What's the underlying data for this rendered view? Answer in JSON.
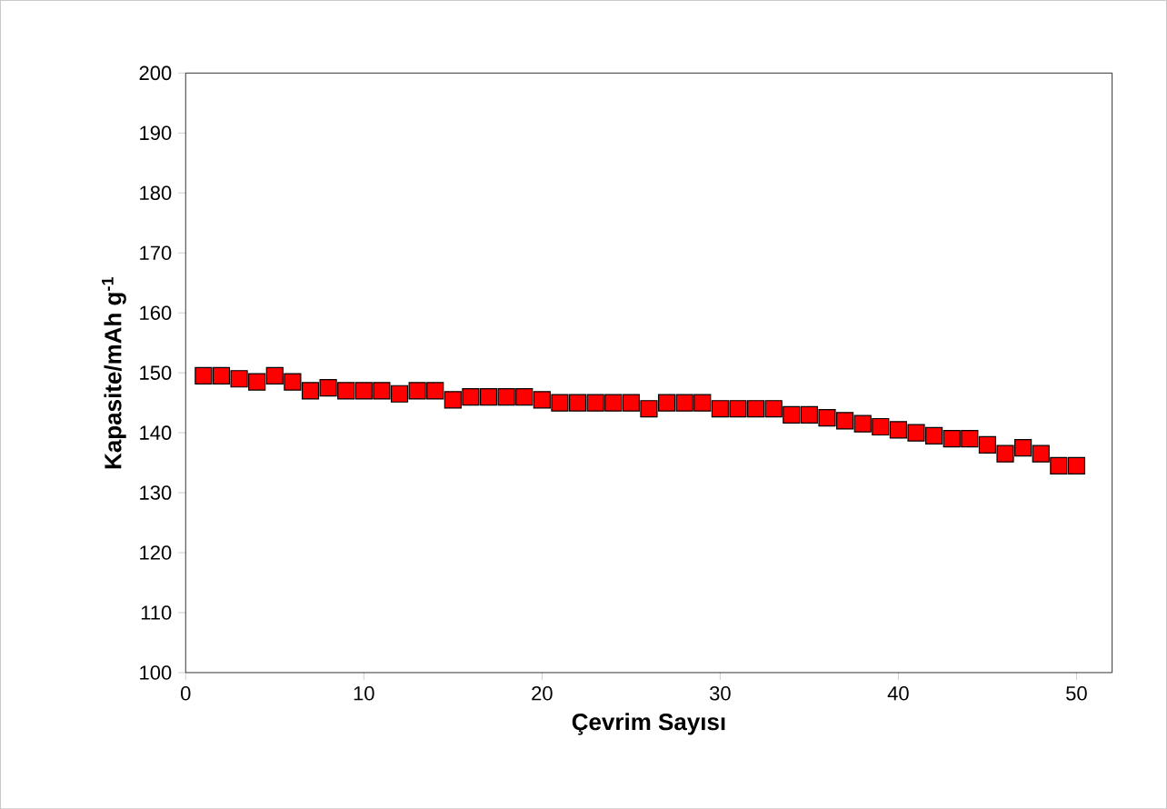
{
  "chart_data": {
    "type": "scatter",
    "xlabel": "Çevrim Sayısı",
    "ylabel": "Kapasite/mAh g$^{-1}$",
    "x": [
      1,
      2,
      3,
      4,
      5,
      6,
      7,
      8,
      9,
      10,
      11,
      12,
      13,
      14,
      15,
      16,
      17,
      18,
      19,
      20,
      21,
      22,
      23,
      24,
      25,
      26,
      27,
      28,
      29,
      30,
      31,
      32,
      33,
      34,
      35,
      36,
      37,
      38,
      39,
      40,
      41,
      42,
      43,
      44,
      45,
      46,
      47,
      48,
      49,
      50
    ],
    "values": [
      149.5,
      149.5,
      149,
      148.5,
      149.5,
      148.5,
      147,
      147.5,
      147,
      147,
      147,
      146.5,
      147,
      147,
      145.5,
      146,
      146,
      146,
      146,
      145.5,
      145,
      145,
      145,
      145,
      145,
      144,
      145,
      145,
      145,
      144,
      144,
      144,
      144,
      143,
      143,
      142.5,
      142,
      141.5,
      141,
      140.5,
      140,
      139.5,
      139,
      139,
      138,
      136.5,
      137.5,
      136.5,
      134.5,
      134.5
    ],
    "color": "#ff0000",
    "marker": "square",
    "grid": false,
    "xlim": [
      0,
      52
    ],
    "xticks": [
      0,
      10,
      20,
      30,
      40,
      50
    ],
    "ylim": [
      100,
      200
    ],
    "yticks": [
      100,
      110,
      120,
      130,
      140,
      150,
      160,
      170,
      180,
      190,
      200
    ]
  }
}
